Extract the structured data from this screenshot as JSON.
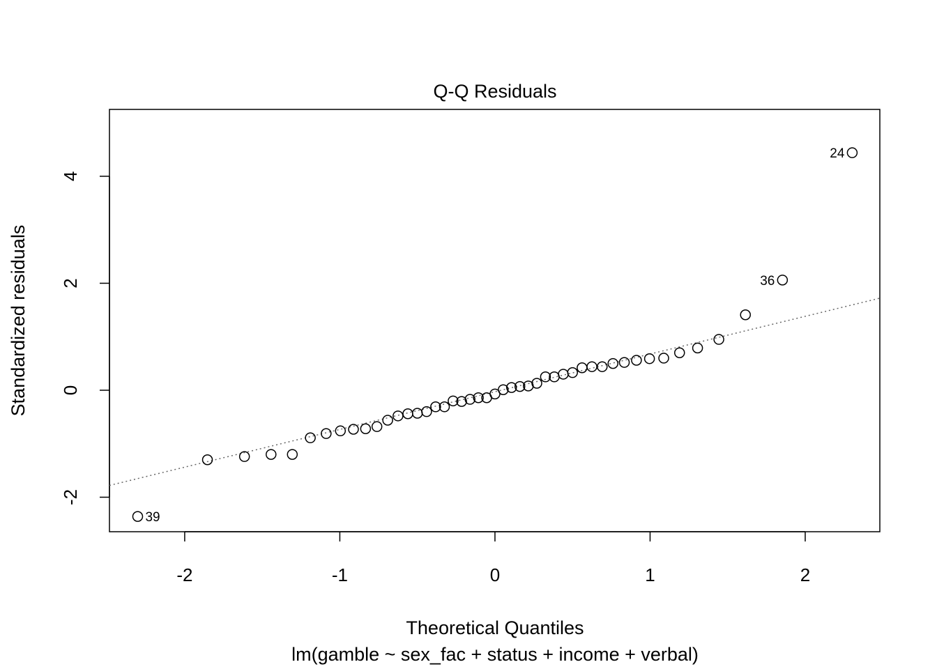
{
  "chart_data": {
    "type": "scatter",
    "title": "Q-Q Residuals",
    "xlabel": "Theoretical Quantiles",
    "subtitle": "lm(gamble ~ sex_fac + status + income + verbal)",
    "ylabel": "Standardized residuals",
    "xlim": [
      -2.485,
      2.481
    ],
    "ylim": [
      -2.645,
      5.25
    ],
    "xticks": [
      -2,
      -1,
      0,
      1,
      2
    ],
    "yticks": [
      -2,
      0,
      2,
      4
    ],
    "xtick_labels": [
      "-2",
      "-1",
      "0",
      "1",
      "2"
    ],
    "ytick_labels": [
      "-2",
      "0",
      "2",
      "4"
    ],
    "grid": false,
    "n": 47,
    "y": [
      -2.36,
      -1.3,
      -1.24,
      -1.2,
      -1.2,
      -0.89,
      -0.81,
      -0.76,
      -0.73,
      -0.72,
      -0.68,
      -0.56,
      -0.48,
      -0.44,
      -0.43,
      -0.4,
      -0.31,
      -0.31,
      -0.2,
      -0.21,
      -0.17,
      -0.14,
      -0.14,
      -0.07,
      0.01,
      0.05,
      0.07,
      0.08,
      0.13,
      0.25,
      0.25,
      0.3,
      0.33,
      0.42,
      0.44,
      0.44,
      0.5,
      0.52,
      0.56,
      0.59,
      0.6,
      0.7,
      0.79,
      0.95,
      1.41,
      2.06,
      4.44
    ],
    "reference_line": {
      "intercept": -0.028,
      "slope": 0.705,
      "style": "dotted",
      "color": "#666666"
    },
    "labeled_points": [
      {
        "index": 0,
        "label": "39",
        "side": "right"
      },
      {
        "index": 45,
        "label": "36",
        "side": "left"
      },
      {
        "index": 46,
        "label": "24",
        "side": "left"
      }
    ]
  }
}
